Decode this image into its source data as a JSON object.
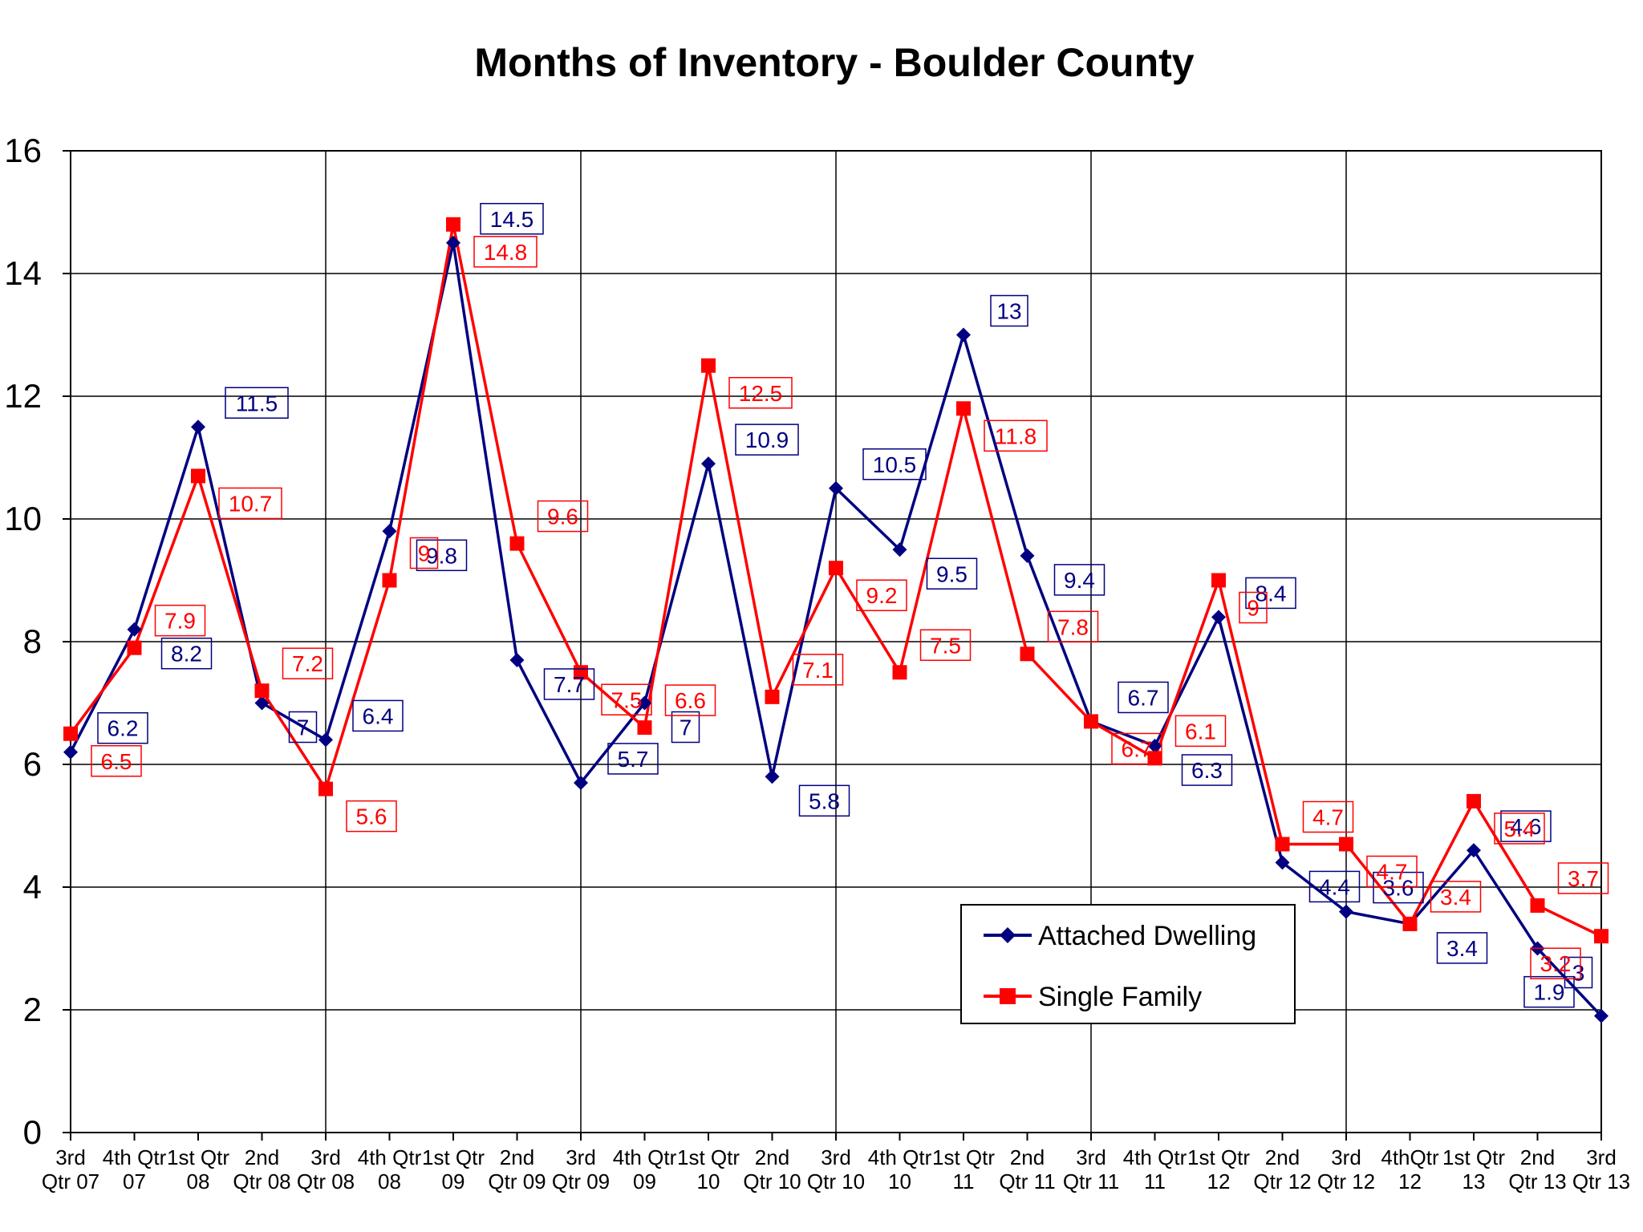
{
  "chart_data": {
    "type": "line",
    "title": "Months of Inventory - Boulder County",
    "xlabel": "",
    "ylabel": "",
    "ylim": [
      0,
      16
    ],
    "yticks": [
      0,
      2,
      4,
      6,
      8,
      10,
      12,
      14,
      16
    ],
    "grid": true,
    "legend_position": "lower-right",
    "categories": [
      [
        "3rd",
        "Qtr 07"
      ],
      [
        "4th Qtr",
        "07"
      ],
      [
        "1st Qtr",
        "08"
      ],
      [
        "2nd",
        "Qtr 08"
      ],
      [
        "3rd",
        "Qtr 08"
      ],
      [
        "4th Qtr",
        "08"
      ],
      [
        "1st Qtr",
        "09"
      ],
      [
        "2nd",
        "Qtr 09"
      ],
      [
        "3rd",
        "Qtr 09"
      ],
      [
        "4th Qtr",
        "09"
      ],
      [
        "1st Qtr",
        "10"
      ],
      [
        "2nd",
        "Qtr 10"
      ],
      [
        "3rd",
        "Qtr 10"
      ],
      [
        "4th Qtr",
        "10"
      ],
      [
        "1st Qtr",
        "11"
      ],
      [
        "2nd",
        "Qtr 11"
      ],
      [
        "3rd",
        "Qtr 11"
      ],
      [
        "4th Qtr",
        "11"
      ],
      [
        "1st Qtr",
        "12"
      ],
      [
        "2nd",
        "Qtr 12"
      ],
      [
        "3rd",
        "Qtr 12"
      ],
      [
        "4thQtr",
        "12"
      ],
      [
        "1st Qtr",
        "13"
      ],
      [
        "2nd",
        "Qtr 13"
      ],
      [
        "3rd",
        "Qtr 13"
      ]
    ],
    "series": [
      {
        "name": "Attached Dwelling",
        "color": "#000080",
        "marker": "diamond",
        "values": [
          6.2,
          8.2,
          11.5,
          7,
          6.4,
          9.8,
          14.5,
          7.7,
          5.7,
          7,
          10.9,
          5.8,
          10.5,
          9.5,
          13,
          9.4,
          6.7,
          6.3,
          8.4,
          4.4,
          3.6,
          3.4,
          4.6,
          3,
          1.9
        ]
      },
      {
        "name": "Single Family",
        "color": "#ff0000",
        "marker": "square",
        "values": [
          6.5,
          7.9,
          10.7,
          7.2,
          5.6,
          9,
          14.8,
          9.6,
          7.5,
          6.6,
          12.5,
          7.1,
          9.2,
          7.5,
          11.8,
          7.8,
          6.7,
          6.1,
          9,
          4.7,
          4.7,
          3.4,
          5.4,
          3.7,
          3.2
        ]
      }
    ]
  }
}
